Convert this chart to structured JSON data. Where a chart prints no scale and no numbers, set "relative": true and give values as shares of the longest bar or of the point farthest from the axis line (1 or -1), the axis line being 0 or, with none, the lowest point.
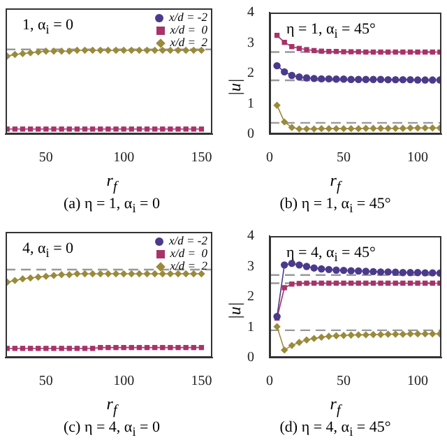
{
  "chart_data": [
    {
      "type": "line",
      "relative": true,
      "x": [
        25,
        30,
        35,
        40,
        45,
        50,
        55,
        60,
        65,
        70,
        75,
        80,
        85,
        90,
        95,
        100,
        105,
        110,
        115,
        120,
        125,
        130,
        135,
        140,
        145,
        150
      ],
      "xlim": [
        24,
        157
      ],
      "xticks": [
        50,
        100,
        150
      ],
      "xlabel": "r$_{f}$",
      "legend": "top right",
      "line_style": "solid",
      "series": [
        {
          "name": "x/d = -2",
          "color": "#4b3a8c",
          "marker": "circle",
          "values": [
            null,
            null,
            null,
            null,
            null,
            null,
            null,
            null,
            null,
            null,
            null,
            null,
            null,
            null,
            null,
            null,
            null,
            null,
            null,
            null,
            null,
            null,
            null,
            null,
            null,
            null
          ]
        },
        {
          "name": "x/d =  0",
          "color": "#a8326a",
          "marker": "square",
          "values": [
            0.06,
            0.06,
            0.06,
            0.06,
            0.06,
            0.06,
            0.06,
            0.06,
            0.06,
            0.06,
            0.06,
            0.06,
            0.06,
            0.06,
            0.06,
            0.06,
            0.06,
            0.06,
            0.06,
            0.06,
            0.06,
            0.06,
            0.06,
            0.06,
            0.06,
            0.06
          ]
        },
        {
          "name": "x/d =  2",
          "color": "#9a8a3a",
          "marker": "diamond",
          "values": [
            0.93,
            0.95,
            0.96,
            0.97,
            0.98,
            0.99,
            0.99,
            0.99,
            0.99,
            1,
            1,
            1,
            1,
            1,
            1,
            1,
            1,
            1,
            1,
            1,
            1,
            1,
            1,
            1,
            1,
            1
          ]
        }
      ],
      "ref_lines": [
        {
          "axis": "y",
          "value": 1.01,
          "color": "#999999",
          "line_style": "dashed"
        }
      ],
      "annotations": [
        "1, α$_{i}$ = 0",
        "(a) η = 1, α$_{i}$ = 0"
      ]
    },
    {
      "type": "line",
      "x": [
        5,
        10,
        15,
        20,
        25,
        30,
        35,
        40,
        45,
        50,
        55,
        60,
        65,
        70,
        75,
        80,
        85,
        90,
        95,
        100,
        105,
        110,
        115
      ],
      "xlim": [
        0,
        116
      ],
      "xticks": [
        0,
        50,
        100
      ],
      "ylim": [
        0,
        4
      ],
      "yticks": [
        0,
        1,
        2,
        3,
        4
      ],
      "xlabel": "r$_{f}$",
      "ylabel": "|u|",
      "line_style": "solid",
      "series": [
        {
          "color": "#4b3a8c",
          "marker": "circle",
          "values": [
            2.25,
            2.05,
            1.93,
            1.88,
            1.85,
            1.83,
            1.82,
            1.82,
            1.81,
            1.81,
            1.8,
            1.8,
            1.8,
            1.8,
            1.8,
            1.79,
            1.79,
            1.79,
            1.79,
            1.78,
            1.78,
            1.78,
            1.78
          ]
        },
        {
          "color": "#a8326a",
          "marker": "square",
          "values": [
            3.25,
            3.02,
            2.88,
            2.82,
            2.78,
            2.75,
            2.73,
            2.72,
            2.72,
            2.71,
            2.71,
            2.71,
            2.7,
            2.7,
            2.7,
            2.7,
            2.7,
            2.7,
            2.7,
            2.7,
            2.7,
            2.7,
            2.7
          ]
        },
        {
          "color": "#9a8a3a",
          "marker": "diamond",
          "values": [
            0.95,
            0.4,
            0.22,
            0.17,
            0.17,
            0.17,
            0.18,
            0.18,
            0.18,
            0.18,
            0.18,
            0.18,
            0.19,
            0.19,
            0.19,
            0.19,
            0.19,
            0.19,
            0.2,
            0.2,
            0.2,
            0.2,
            0.2
          ]
        }
      ],
      "ref_lines": [
        {
          "axis": "y",
          "value": 2.7,
          "color": "#999999",
          "line_style": "dashed"
        },
        {
          "axis": "y",
          "value": 1.77,
          "color": "#999999",
          "line_style": "dashed"
        },
        {
          "axis": "y",
          "value": 0.37,
          "color": "#999999",
          "line_style": "dashed"
        }
      ],
      "annotations": [
        "η = 1, α$_{i}$ = 45°",
        "(b) η = 1, α$_{i}$ = 45°"
      ]
    },
    {
      "type": "line",
      "relative": true,
      "x": [
        25,
        30,
        35,
        40,
        45,
        50,
        55,
        60,
        65,
        70,
        75,
        80,
        85,
        90,
        95,
        100,
        105,
        110,
        115,
        120,
        125,
        130,
        135,
        140,
        145,
        150
      ],
      "xlim": [
        24,
        157
      ],
      "xticks": [
        50,
        100,
        150
      ],
      "xlabel": "r$_{f}$",
      "legend": "top right",
      "line_style": "solid",
      "series": [
        {
          "name": "x/d = -2",
          "color": "#4b3a8c",
          "marker": "circle",
          "values": [
            null,
            null,
            null,
            null,
            null,
            null,
            null,
            null,
            null,
            null,
            null,
            null,
            null,
            null,
            null,
            null,
            null,
            null,
            null,
            null,
            null,
            null,
            null,
            null,
            null,
            null
          ]
        },
        {
          "name": "x/d =  0",
          "color": "#a8326a",
          "marker": "square",
          "values": [
            0.11,
            0.11,
            0.11,
            0.11,
            0.11,
            0.11,
            0.11,
            0.11,
            0.11,
            0.11,
            0.11,
            0.11,
            0.12,
            0.12,
            0.12,
            0.12,
            0.12,
            0.12,
            0.12,
            0.12,
            0.12,
            0.12,
            0.12,
            0.12,
            0.12,
            0.12
          ]
        },
        {
          "name": "x/d =  2",
          "color": "#9a8a3a",
          "marker": "diamond",
          "values": [
            0.9,
            0.92,
            0.94,
            0.95,
            0.96,
            0.97,
            0.98,
            0.99,
            0.99,
            1,
            1,
            1,
            1,
            1,
            1,
            1,
            1,
            1,
            1,
            1,
            1,
            1,
            1,
            1,
            1,
            1
          ]
        }
      ],
      "ref_lines": [
        {
          "axis": "y",
          "value": 1.05,
          "color": "#999999",
          "line_style": "dashed"
        }
      ],
      "annotations": [
        "4, α$_{i}$ = 0",
        "(c) η = 4, α$_{i}$ = 0"
      ]
    },
    {
      "type": "line",
      "x": [
        5,
        10,
        15,
        20,
        25,
        30,
        35,
        40,
        45,
        50,
        55,
        60,
        65,
        70,
        75,
        80,
        85,
        90,
        95,
        100,
        105,
        110,
        115
      ],
      "xlim": [
        0,
        116
      ],
      "xticks": [
        0,
        50,
        100
      ],
      "ylim": [
        0,
        4
      ],
      "yticks": [
        0,
        1,
        2,
        3,
        4
      ],
      "xlabel": "r$_{f}$",
      "ylabel": "|u|",
      "line_style": "solid",
      "series": [
        {
          "color": "#4b3a8c",
          "marker": "circle",
          "values": [
            1.35,
            3.05,
            3.1,
            3.05,
            3.0,
            2.95,
            2.92,
            2.9,
            2.88,
            2.87,
            2.86,
            2.85,
            2.84,
            2.83,
            2.82,
            2.82,
            2.81,
            2.8,
            2.8,
            2.8,
            2.79,
            2.79,
            2.78
          ]
        },
        {
          "color": "#a8326a",
          "marker": "square",
          "values": [
            1.3,
            2.3,
            2.42,
            2.44,
            2.45,
            2.45,
            2.45,
            2.45,
            2.45,
            2.45,
            2.45,
            2.45,
            2.45,
            2.45,
            2.45,
            2.45,
            2.45,
            2.45,
            2.45,
            2.45,
            2.45,
            2.45,
            2.45
          ]
        },
        {
          "color": "#9a8a3a",
          "marker": "diamond",
          "values": [
            1.02,
            0.25,
            0.4,
            0.5,
            0.58,
            0.63,
            0.67,
            0.7,
            0.72,
            0.73,
            0.74,
            0.75,
            0.75,
            0.76,
            0.76,
            0.77,
            0.77,
            0.77,
            0.78,
            0.78,
            0.78,
            0.78,
            0.78
          ]
        }
      ],
      "ref_lines": [
        {
          "axis": "y",
          "value": 2.72,
          "color": "#999999",
          "line_style": "dashed"
        },
        {
          "axis": "y",
          "value": 2.45,
          "color": "#999999",
          "line_style": "dashed"
        },
        {
          "axis": "y",
          "value": 0.9,
          "color": "#999999",
          "line_style": "dashed"
        }
      ],
      "annotations": [
        "η = 4, α$_{i}$ = 45°",
        "(d) η = 4, α$_{i}$ = 45°"
      ]
    }
  ]
}
